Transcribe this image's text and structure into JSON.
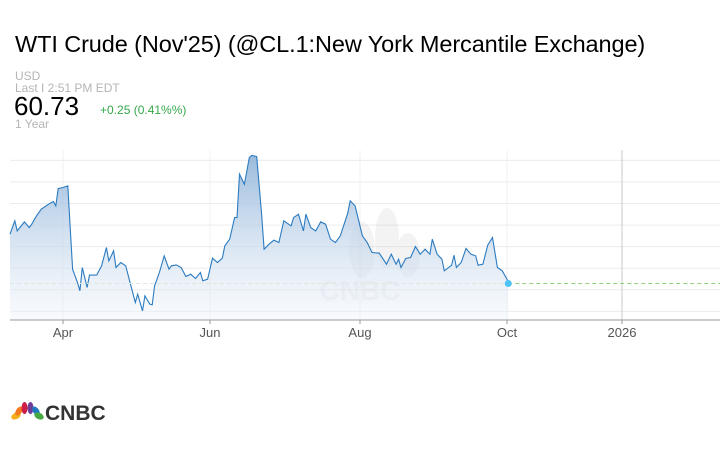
{
  "header": {
    "title": "WTI Crude (Nov'25) (@CL.1:New York Mercantile Exchange)",
    "currency": "USD",
    "last_time": "Last I 2:51 PM EDT",
    "price": "60.73",
    "change": "+0.25 (0.41%%)",
    "period": "1 Year"
  },
  "colors": {
    "line": "#2b7bc0",
    "fill_top": "#8fb3d9",
    "dot": "#4fc3f7",
    "last_line": "#8fd17f",
    "change": "#35a84a"
  },
  "chart_data": {
    "type": "area",
    "title": "",
    "xlabel": "",
    "ylabel": "",
    "ylim": [
      56.5,
      76.2
    ],
    "grid": true,
    "gridlines": [
      57.5,
      60,
      62.5,
      65,
      67.5,
      70,
      72.5,
      75
    ],
    "x_ticks": [
      {
        "label": "Apr",
        "date": "2025-04-01"
      },
      {
        "label": "Jun",
        "date": "2025-06-01"
      },
      {
        "label": "Aug",
        "date": "2025-08-01"
      },
      {
        "label": "Oct",
        "date": "2025-10-01"
      },
      {
        "label": "2026",
        "date": "2026-01-01"
      }
    ],
    "last_value": 60.73,
    "points": [
      [
        "2025-03-10",
        66.44
      ],
      [
        "2025-03-12",
        67.99
      ],
      [
        "2025-03-13",
        66.83
      ],
      [
        "2025-03-16",
        67.87
      ],
      [
        "2025-03-18",
        67.21
      ],
      [
        "2025-03-19",
        67.6
      ],
      [
        "2025-03-21",
        68.57
      ],
      [
        "2025-03-23",
        69.34
      ],
      [
        "2025-03-26",
        69.92
      ],
      [
        "2025-03-28",
        70.23
      ],
      [
        "2025-03-29",
        69.72
      ],
      [
        "2025-03-30",
        71.73
      ],
      [
        "2025-04-01",
        71.85
      ],
      [
        "2025-04-03",
        72.04
      ],
      [
        "2025-04-04",
        67.21
      ],
      [
        "2025-04-05",
        62.39
      ],
      [
        "2025-04-07",
        60.85
      ],
      [
        "2025-04-08",
        59.88
      ],
      [
        "2025-04-09",
        62.58
      ],
      [
        "2025-04-11",
        60.27
      ],
      [
        "2025-04-12",
        61.7
      ],
      [
        "2025-04-15",
        61.7
      ],
      [
        "2025-04-17",
        62.78
      ],
      [
        "2025-04-19",
        64.9
      ],
      [
        "2025-04-20",
        63.35
      ],
      [
        "2025-04-22",
        64.51
      ],
      [
        "2025-04-23",
        62.58
      ],
      [
        "2025-04-25",
        63.16
      ],
      [
        "2025-04-27",
        62.78
      ],
      [
        "2025-04-29",
        60.65
      ],
      [
        "2025-05-01",
        58.53
      ],
      [
        "2025-05-02",
        59.49
      ],
      [
        "2025-05-04",
        57.56
      ],
      [
        "2025-05-05",
        59.3
      ],
      [
        "2025-05-07",
        58.34
      ],
      [
        "2025-05-08",
        58.26
      ],
      [
        "2025-05-09",
        60.46
      ],
      [
        "2025-05-11",
        62.0
      ],
      [
        "2025-05-13",
        63.93
      ],
      [
        "2025-05-15",
        62.39
      ],
      [
        "2025-05-16",
        62.78
      ],
      [
        "2025-05-18",
        62.89
      ],
      [
        "2025-05-20",
        62.58
      ],
      [
        "2025-05-22",
        61.54
      ],
      [
        "2025-05-24",
        61.81
      ],
      [
        "2025-05-26",
        61.31
      ],
      [
        "2025-05-28",
        62.0
      ],
      [
        "2025-05-29",
        61.04
      ],
      [
        "2025-05-31",
        61.23
      ],
      [
        "2025-06-02",
        63.66
      ],
      [
        "2025-06-04",
        63.16
      ],
      [
        "2025-06-06",
        63.66
      ],
      [
        "2025-06-07",
        65.09
      ],
      [
        "2025-06-09",
        65.86
      ],
      [
        "2025-06-11",
        68.37
      ],
      [
        "2025-06-12",
        68.37
      ],
      [
        "2025-06-13",
        73.39
      ],
      [
        "2025-06-15",
        72.23
      ],
      [
        "2025-06-17",
        75.32
      ],
      [
        "2025-06-18",
        75.59
      ],
      [
        "2025-06-20",
        75.44
      ],
      [
        "2025-06-22",
        68.76
      ],
      [
        "2025-06-23",
        64.71
      ],
      [
        "2025-06-25",
        65.28
      ],
      [
        "2025-06-27",
        65.75
      ],
      [
        "2025-06-29",
        65.48
      ],
      [
        "2025-07-01",
        67.99
      ],
      [
        "2025-07-04",
        67.41
      ],
      [
        "2025-07-05",
        68.37
      ],
      [
        "2025-07-07",
        68.76
      ],
      [
        "2025-07-09",
        66.83
      ],
      [
        "2025-07-10",
        68.76
      ],
      [
        "2025-07-12",
        67.21
      ],
      [
        "2025-07-14",
        66.83
      ],
      [
        "2025-07-16",
        67.87
      ],
      [
        "2025-07-18",
        67.6
      ],
      [
        "2025-07-20",
        65.86
      ],
      [
        "2025-07-22",
        65.48
      ],
      [
        "2025-07-24",
        66.25
      ],
      [
        "2025-07-27",
        68.87
      ],
      [
        "2025-07-28",
        70.3
      ],
      [
        "2025-07-30",
        69.72
      ],
      [
        "2025-08-02",
        66.25
      ],
      [
        "2025-08-04",
        65.48
      ],
      [
        "2025-08-06",
        64.32
      ],
      [
        "2025-08-09",
        64.24
      ],
      [
        "2025-08-12",
        62.97
      ],
      [
        "2025-08-14",
        64.13
      ],
      [
        "2025-08-16",
        62.97
      ],
      [
        "2025-08-17",
        63.55
      ],
      [
        "2025-08-18",
        62.58
      ],
      [
        "2025-08-20",
        63.63
      ],
      [
        "2025-08-22",
        63.74
      ],
      [
        "2025-08-24",
        65.01
      ],
      [
        "2025-08-26",
        64.13
      ],
      [
        "2025-08-28",
        64.71
      ],
      [
        "2025-08-30",
        64.13
      ],
      [
        "2025-08-31",
        65.86
      ],
      [
        "2025-09-02",
        64.13
      ],
      [
        "2025-09-04",
        63.55
      ],
      [
        "2025-09-05",
        62.2
      ],
      [
        "2025-09-08",
        62.85
      ],
      [
        "2025-09-09",
        64.01
      ],
      [
        "2025-09-10",
        62.58
      ],
      [
        "2025-09-12",
        63.16
      ],
      [
        "2025-09-14",
        64.78
      ],
      [
        "2025-09-16",
        64.13
      ],
      [
        "2025-09-18",
        63.93
      ],
      [
        "2025-09-19",
        62.85
      ],
      [
        "2025-09-21",
        62.97
      ],
      [
        "2025-09-23",
        65.17
      ],
      [
        "2025-09-25",
        66.06
      ],
      [
        "2025-09-27",
        62.58
      ],
      [
        "2025-09-29",
        62.2
      ],
      [
        "2025-10-01",
        61.23
      ],
      [
        "2025-10-02",
        60.73
      ]
    ]
  },
  "logo": {
    "text": "CNBC"
  }
}
